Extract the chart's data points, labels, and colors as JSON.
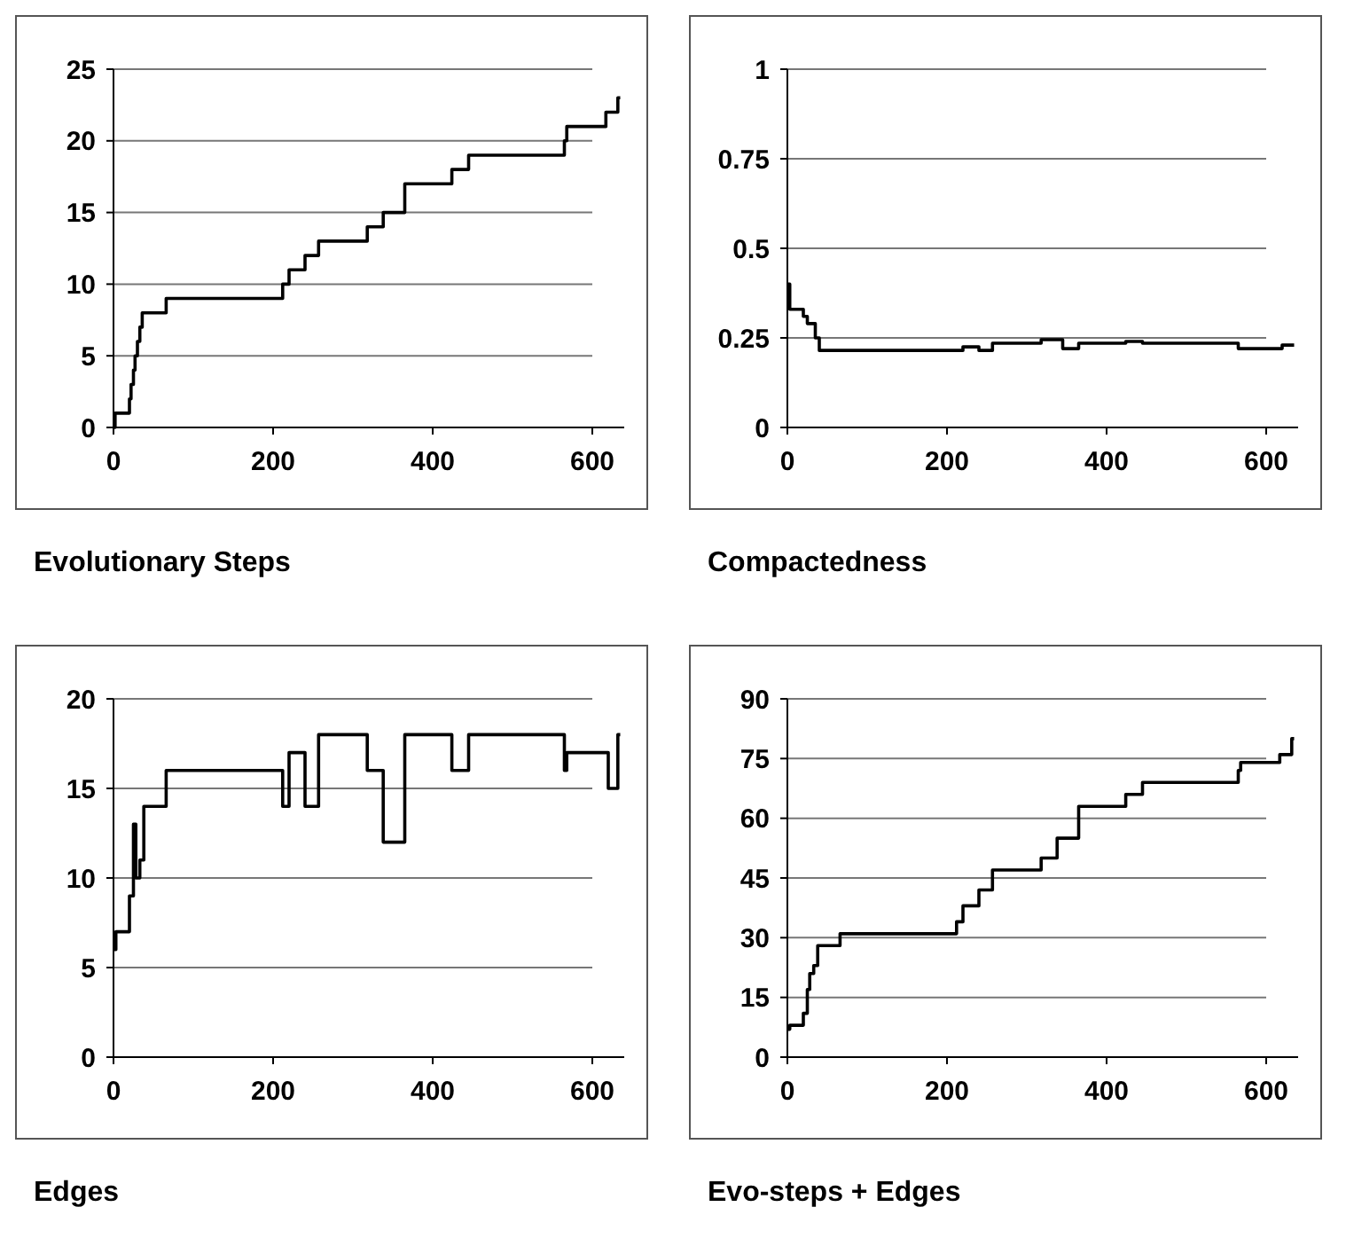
{
  "chart_data": [
    {
      "type": "step",
      "title": "Evolutionary Steps",
      "xlim": [
        0,
        640
      ],
      "xticks": [
        0,
        200,
        400,
        600
      ],
      "ylim": [
        0,
        25
      ],
      "yticks": [
        0,
        5,
        10,
        15,
        20,
        25
      ],
      "grid": "y",
      "series": [
        {
          "color": "#000000",
          "x": [
            0,
            2,
            20,
            22,
            25,
            27,
            30,
            33,
            36,
            66,
            212,
            220,
            240,
            257,
            318,
            338,
            365,
            424,
            445,
            565,
            568,
            617,
            632,
            635
          ],
          "values": [
            0,
            1,
            2,
            3,
            4,
            5,
            6,
            7,
            8,
            9,
            10,
            11,
            12,
            13,
            14,
            15,
            17,
            18,
            19,
            20,
            21,
            22,
            23,
            23
          ]
        }
      ]
    },
    {
      "type": "step",
      "title": "Compactedness",
      "xlim": [
        0,
        640
      ],
      "xticks": [
        0,
        200,
        400,
        600
      ],
      "ylim": [
        0,
        1
      ],
      "yticks": [
        0,
        0.25,
        0.5,
        0.75,
        1
      ],
      "grid": "y",
      "series": [
        {
          "color": "#000000",
          "x": [
            0,
            3,
            20,
            25,
            35,
            40,
            220,
            240,
            257,
            318,
            345,
            365,
            424,
            445,
            565,
            620,
            635
          ],
          "values": [
            0.4,
            0.33,
            0.31,
            0.29,
            0.25,
            0.215,
            0.225,
            0.215,
            0.235,
            0.245,
            0.22,
            0.235,
            0.24,
            0.235,
            0.22,
            0.23,
            0.23
          ]
        }
      ]
    },
    {
      "type": "step",
      "title": "Edges",
      "xlim": [
        0,
        640
      ],
      "xticks": [
        0,
        200,
        400,
        600
      ],
      "ylim": [
        0,
        20
      ],
      "yticks": [
        0,
        5,
        10,
        15,
        20
      ],
      "grid": "y",
      "series": [
        {
          "color": "#000000",
          "x": [
            0,
            3,
            20,
            25,
            28,
            33,
            38,
            66,
            212,
            220,
            240,
            257,
            318,
            338,
            365,
            424,
            445,
            565,
            568,
            620,
            632,
            635
          ],
          "values": [
            6,
            7,
            9,
            13,
            10,
            11,
            14,
            16,
            14,
            17,
            14,
            18,
            16,
            12,
            18,
            16,
            18,
            16,
            17,
            15,
            18,
            18
          ]
        }
      ]
    },
    {
      "type": "step",
      "title": "Evo-steps + Edges",
      "xlim": [
        0,
        640
      ],
      "xticks": [
        0,
        200,
        400,
        600
      ],
      "ylim": [
        0,
        90
      ],
      "yticks": [
        0,
        15,
        30,
        45,
        60,
        75,
        90
      ],
      "grid": "y",
      "series": [
        {
          "color": "#000000",
          "x": [
            0,
            3,
            20,
            25,
            28,
            33,
            38,
            66,
            212,
            220,
            240,
            257,
            318,
            338,
            365,
            424,
            445,
            565,
            568,
            617,
            632,
            635
          ],
          "values": [
            7,
            8,
            11,
            17,
            21,
            23,
            28,
            31,
            34,
            38,
            42,
            47,
            50,
            55,
            63,
            66,
            69,
            72,
            74,
            76,
            80,
            80
          ]
        }
      ]
    }
  ]
}
